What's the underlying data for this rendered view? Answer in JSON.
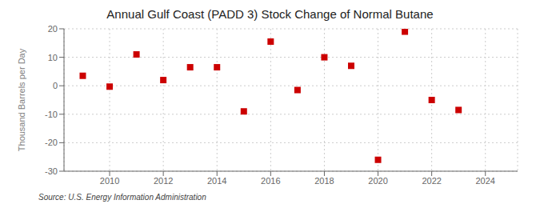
{
  "chart_data": {
    "type": "scatter",
    "title": "Annual Gulf Coast (PADD 3) Stock Change of Normal Butane",
    "ylabel": "Thousand Barrels per Day",
    "annotations": [
      "Source: U.S. Energy Information Administration"
    ],
    "x": [
      2009,
      2010,
      2011,
      2012,
      2013,
      2014,
      2015,
      2016,
      2017,
      2018,
      2019,
      2020,
      2021,
      2022,
      2023,
      2024
    ],
    "values": [
      3.5,
      -0.3,
      11.0,
      2.0,
      6.5,
      6.5,
      -9.0,
      15.5,
      -1.5,
      10.0,
      7.0,
      -26.0,
      19.0,
      -5.0,
      -8.5,
      null
    ],
    "color": "#cc0000",
    "marker": "square",
    "xlim": [
      2008.3,
      2025.2
    ],
    "xticks": [
      2010,
      2012,
      2014,
      2016,
      2018,
      2020,
      2022,
      2024
    ],
    "ylim": [
      -30,
      20
    ],
    "yticks": [
      -30,
      -20,
      -10,
      0,
      10,
      20
    ],
    "grid": true
  }
}
